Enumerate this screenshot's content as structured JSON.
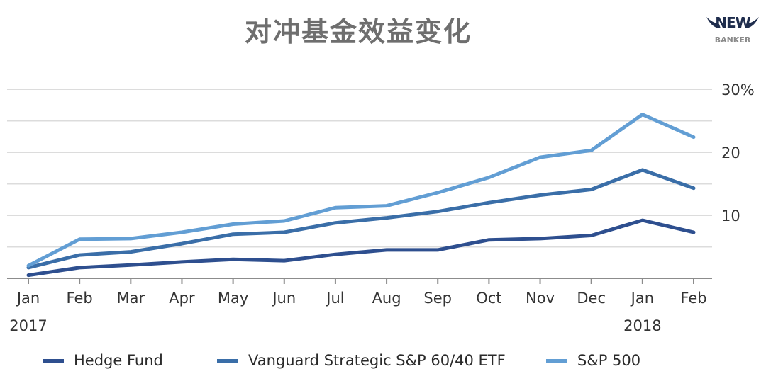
{
  "title": "对冲基金效益变化",
  "logo": {
    "line1": "NEW",
    "line2": "BANKER"
  },
  "chart_data": {
    "type": "line",
    "categories": [
      "Jan",
      "Feb",
      "Mar",
      "Apr",
      "May",
      "Jun",
      "Jul",
      "Aug",
      "Sep",
      "Oct",
      "Nov",
      "Dec",
      "Jan",
      "Feb"
    ],
    "year_labels": [
      {
        "index": 0,
        "label": "2017"
      },
      {
        "index": 12,
        "label": "2018"
      }
    ],
    "ylim": [
      0,
      30
    ],
    "y_ticks": [
      0,
      5,
      10,
      15,
      20,
      25,
      30
    ],
    "y_tick_labels": [
      {
        "value": 30,
        "label": "30%"
      },
      {
        "value": 20,
        "label": "20"
      },
      {
        "value": 10,
        "label": "10"
      }
    ],
    "grid": true,
    "legend_position": "bottom",
    "series": [
      {
        "name": "Hedge Fund",
        "color": "#2e4f8f",
        "values": [
          0.5,
          1.7,
          2.1,
          2.6,
          3.0,
          2.8,
          3.8,
          4.5,
          4.5,
          6.1,
          6.3,
          6.8,
          9.2,
          7.3
        ]
      },
      {
        "name": "Vanguard Strategic S&P 60/40 ETF",
        "color": "#3a6ea8",
        "values": [
          1.7,
          3.7,
          4.2,
          5.5,
          7.0,
          7.3,
          8.8,
          9.6,
          10.6,
          12.0,
          13.2,
          14.1,
          17.2,
          14.3
        ]
      },
      {
        "name": "S&P 500",
        "color": "#629ed4",
        "values": [
          2.0,
          6.2,
          6.3,
          7.3,
          8.6,
          9.1,
          11.2,
          11.5,
          13.6,
          16.0,
          19.2,
          20.3,
          26.0,
          22.4
        ]
      }
    ]
  }
}
